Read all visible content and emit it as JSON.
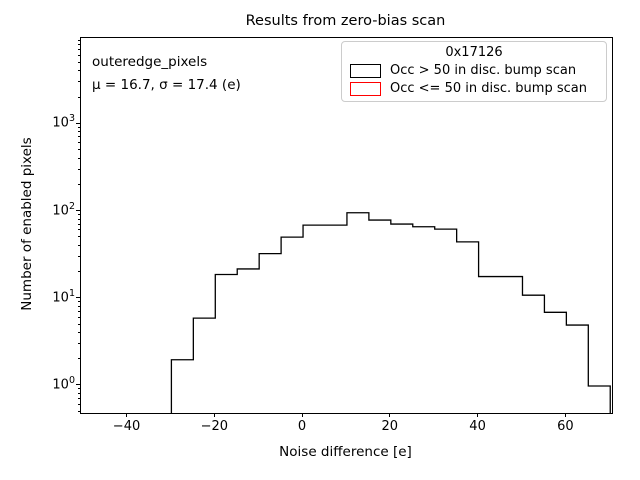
{
  "title": "Results from zero-bias scan",
  "annotation": {
    "line1": "outeredge_pixels",
    "line2": "μ = 16.7, σ = 17.4 (e)"
  },
  "legend": {
    "title": "0x17126",
    "entries": [
      {
        "label": "Occ > 50 in disc. bump scan",
        "color": "#000000"
      },
      {
        "label": "Occ <= 50 in disc. bump scan",
        "color": "#ff0000"
      }
    ],
    "position": "upper right"
  },
  "chart_data": {
    "type": "bar",
    "subtype": "step-histogram",
    "title": "Results from zero-bias scan",
    "xlabel": "Noise difference [e]",
    "ylabel": "Number of enabled pixels",
    "yscale": "log",
    "grid": false,
    "bin_edges": [
      -30,
      -25,
      -20,
      -15,
      -10,
      -5,
      0,
      5,
      10,
      15,
      20,
      25,
      30,
      35,
      40,
      45,
      50,
      55,
      60,
      65,
      70
    ],
    "series": [
      {
        "name": "Occ > 50 in disc. bump scan",
        "color": "#000000",
        "counts": [
          2,
          6,
          19,
          22,
          33,
          51,
          70,
          70,
          97,
          80,
          72,
          67,
          63,
          45,
          18,
          18,
          11,
          7,
          5,
          1
        ]
      },
      {
        "name": "Occ <= 50 in disc. bump scan",
        "color": "#ff0000",
        "counts": [
          0,
          0,
          0,
          0,
          0,
          0,
          0,
          0,
          0,
          0,
          0,
          0,
          0,
          0,
          0,
          0,
          0,
          0,
          0,
          0
        ]
      }
    ],
    "xlim": [
      -50.6,
      70.4
    ],
    "ylim": [
      0.49,
      9800
    ],
    "x_ticks": [
      -40,
      -20,
      0,
      20,
      40,
      60
    ],
    "x_tick_labels": [
      "−40",
      "−20",
      "0",
      "20",
      "40",
      "60"
    ],
    "y_ticks": [
      1,
      10,
      100,
      1000
    ],
    "y_tick_exponents": [
      0,
      1,
      2,
      3
    ],
    "y_tick_labels": [
      "10⁰",
      "10¹",
      "10²",
      "10³"
    ]
  }
}
